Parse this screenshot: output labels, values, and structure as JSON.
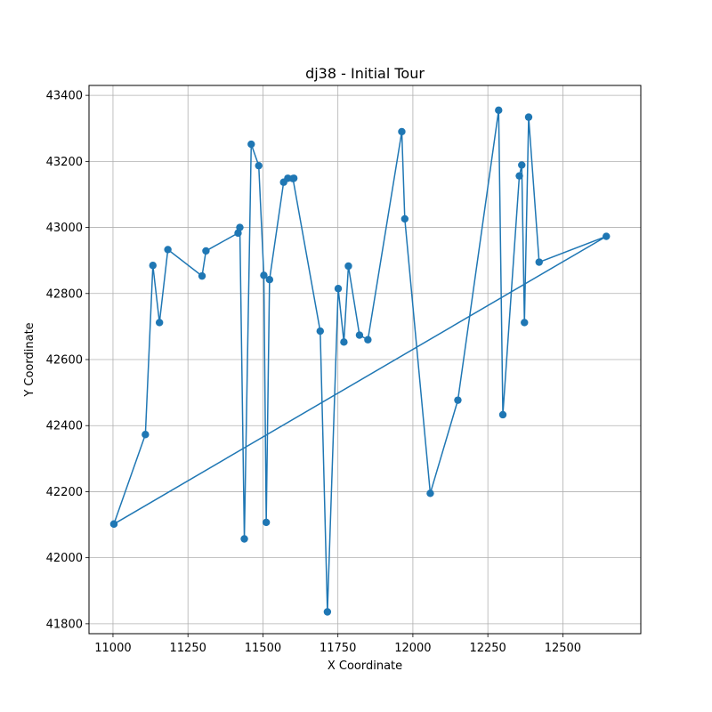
{
  "chart_data": {
    "type": "line",
    "title": "dj38 - Initial Tour",
    "xlabel": "X Coordinate",
    "ylabel": "Y Coordinate",
    "xlim": [
      10920,
      12760
    ],
    "ylim": [
      41770,
      43430
    ],
    "xticks": [
      11000,
      11250,
      11500,
      11750,
      12000,
      12250,
      12500
    ],
    "xtick_labels": [
      "11000",
      "11250",
      "11500",
      "11750",
      "12000",
      "12250",
      "12500"
    ],
    "yticks": [
      41800,
      42000,
      42200,
      42400,
      42600,
      42800,
      43000,
      43200,
      43400
    ],
    "ytick_labels": [
      "41800",
      "42000",
      "42200",
      "42400",
      "42600",
      "42800",
      "43000",
      "43200",
      "43400"
    ],
    "grid": true,
    "markers": true,
    "color": "#1f77b4",
    "series": [
      {
        "x": [
          11003,
          11108,
          11133,
          11155,
          11183,
          11297,
          11310,
          11417,
          11423,
          11438,
          11461,
          11486,
          11503,
          11511,
          11522,
          11569,
          11583,
          11603,
          11600,
          11691,
          11715,
          11751,
          11770,
          11785,
          11822,
          11850,
          11963,
          11973,
          12058,
          12150,
          12286,
          12300,
          12355,
          12363,
          12372,
          12386,
          12421,
          12645,
          11003
        ],
        "y": [
          42102,
          42373,
          42885,
          42712,
          42933,
          42853,
          42929,
          42983,
          43000,
          42057,
          43252,
          43187,
          42855,
          42107,
          42842,
          43137,
          43149,
          43149,
          43148,
          42686,
          41836,
          42815,
          42653,
          42883,
          42674,
          42660,
          43290,
          43026,
          42195,
          42477,
          43355,
          42433,
          43156,
          43189,
          42712,
          43334,
          42895,
          42973,
          42102
        ]
      }
    ]
  }
}
